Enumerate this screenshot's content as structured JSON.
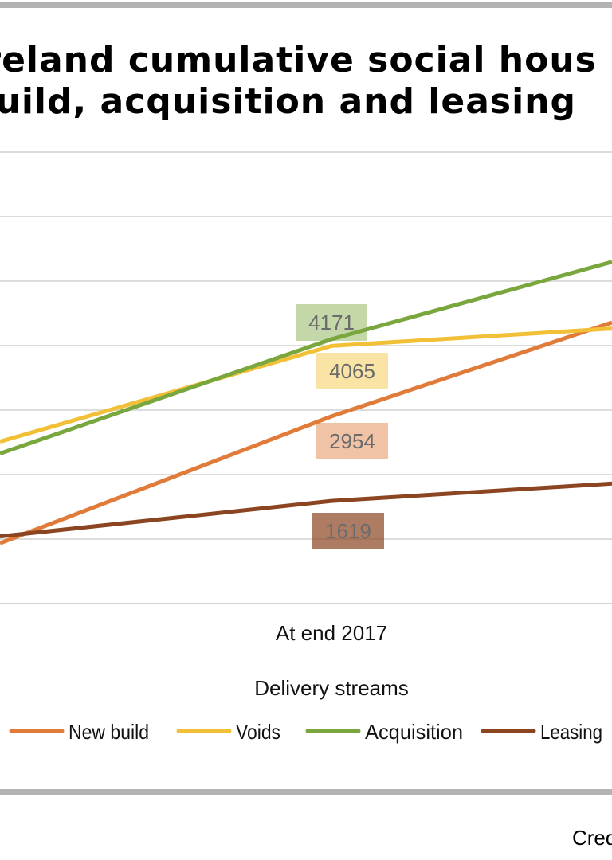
{
  "chart_data": {
    "type": "line",
    "title_lines": [
      "Ireland cumulative social hous",
      "build, acquisition and leasing"
    ],
    "x": [
      "At end 2017"
    ],
    "xlabel": "Delivery streams",
    "legend_position": "bottom",
    "grid": true,
    "series": [
      {
        "name": "New build",
        "color": "#e07b39",
        "values": [
          2954
        ]
      },
      {
        "name": "Voids",
        "color": "#f2c037",
        "values": [
          4065
        ]
      },
      {
        "name": "Acquisition",
        "color": "#7aa63e",
        "values": [
          4171
        ]
      },
      {
        "name": "Leasing",
        "color": "#8b4520",
        "values": [
          1619
        ]
      }
    ]
  },
  "credit": "Cred"
}
